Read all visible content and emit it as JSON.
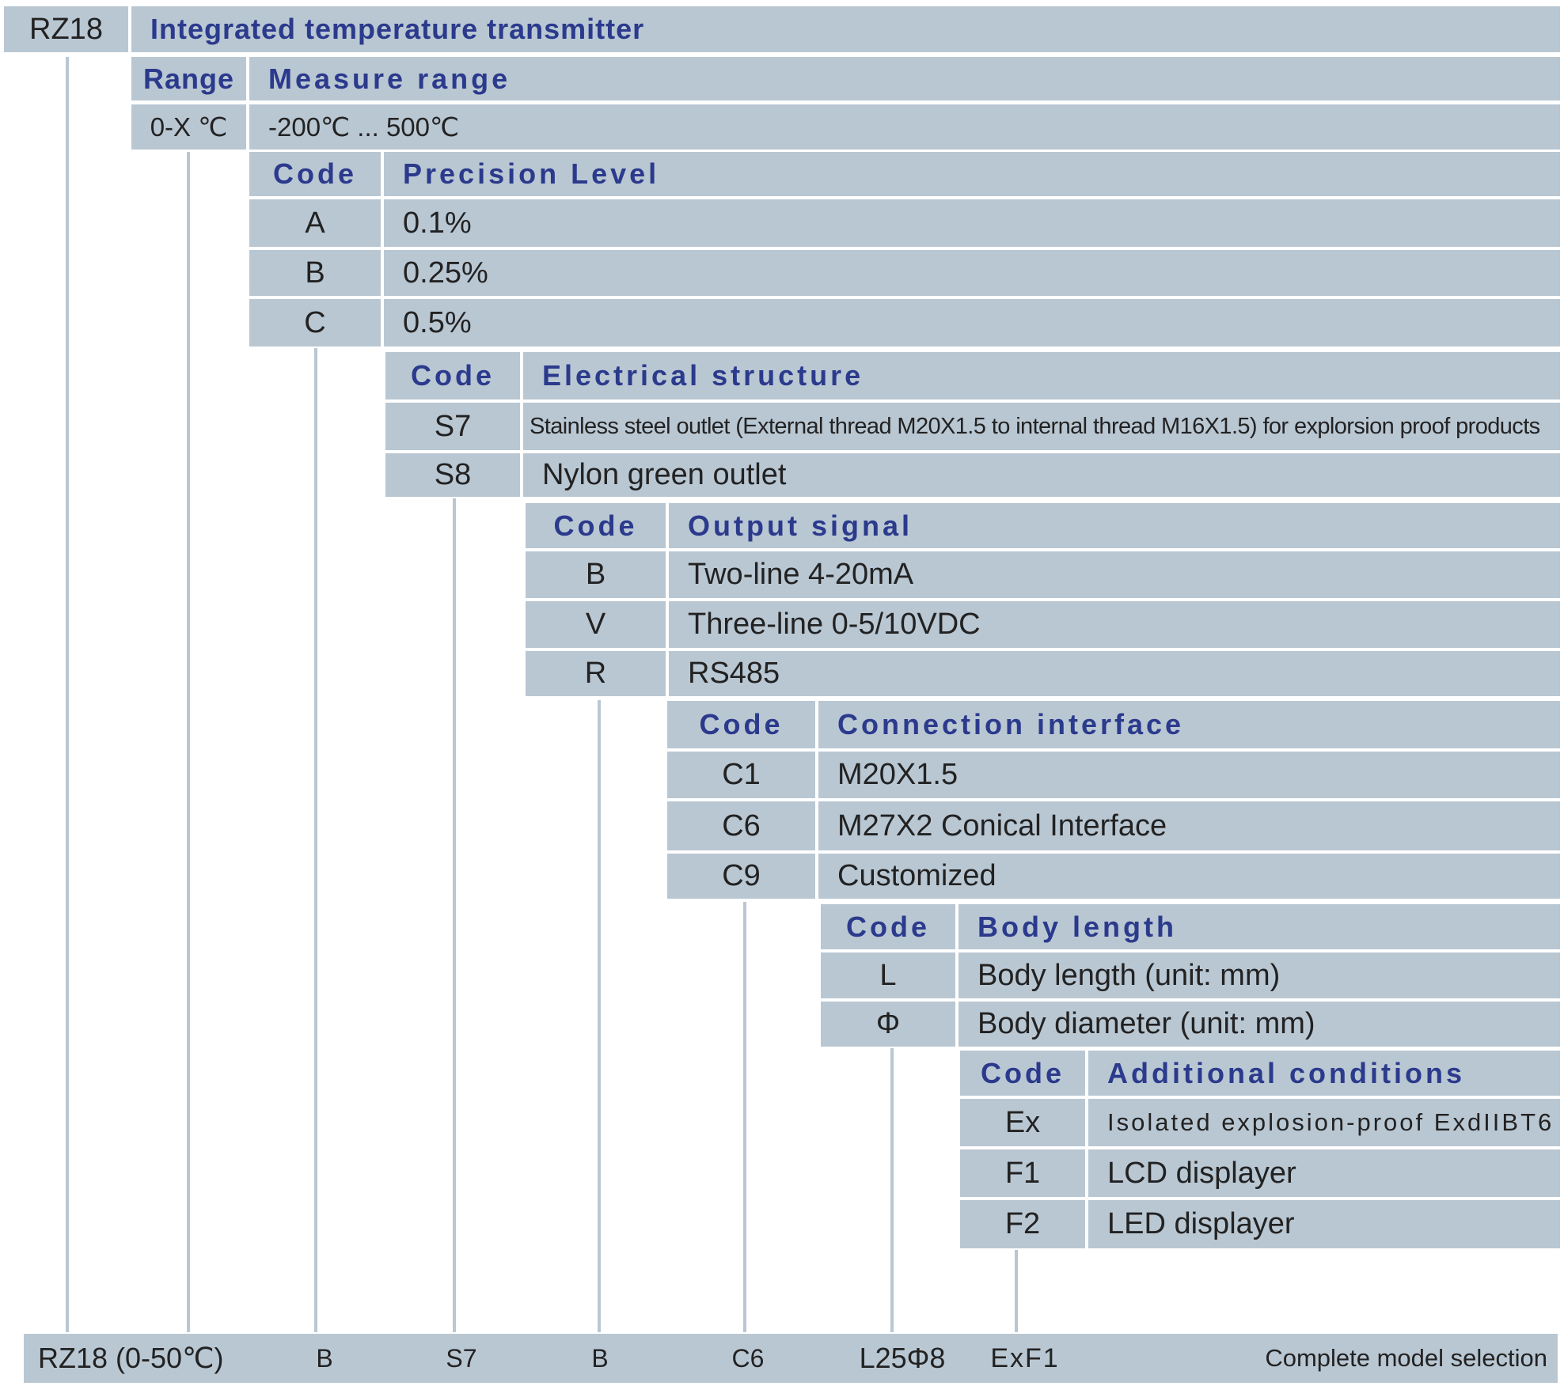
{
  "model": "RZ18",
  "product_title": "Integrated temperature transmitter",
  "range": {
    "header_code": "Range",
    "header_desc": "Measure range",
    "code": "0-X ℃",
    "value": "-200℃ ... 500℃"
  },
  "precision": {
    "header_code": "Code",
    "header_desc": "Precision Level",
    "rows": [
      {
        "code": "A",
        "desc": "0.1%"
      },
      {
        "code": "B",
        "desc": "0.25%"
      },
      {
        "code": "C",
        "desc": "0.5%"
      }
    ]
  },
  "electrical": {
    "header_code": "Code",
    "header_desc": "Electrical structure",
    "rows": [
      {
        "code": "S7",
        "desc": "Stainless steel outlet  (External thread M20X1.5 to internal thread M16X1.5) for explorsion proof products"
      },
      {
        "code": "S8",
        "desc": "Nylon green outlet"
      }
    ]
  },
  "output": {
    "header_code": "Code",
    "header_desc": "Output signal",
    "rows": [
      {
        "code": "B",
        "desc": "Two-line 4-20mA"
      },
      {
        "code": "V",
        "desc": "Three-line  0-5/10VDC"
      },
      {
        "code": "R",
        "desc": "RS485"
      }
    ]
  },
  "connection": {
    "header_code": "Code",
    "header_desc": "Connection interface",
    "rows": [
      {
        "code": "C1",
        "desc": "M20X1.5"
      },
      {
        "code": "C6",
        "desc": "M27X2 Conical Interface"
      },
      {
        "code": "C9",
        "desc": "Customized"
      }
    ]
  },
  "body": {
    "header_code": "Code",
    "header_desc": "Body length",
    "rows": [
      {
        "code": "L",
        "desc": "Body length  (unit:  mm)"
      },
      {
        "code": "Φ",
        "desc": "Body diameter  (unit:  mm)"
      }
    ]
  },
  "additional": {
    "header_code": "Code",
    "header_desc": "Additional conditions",
    "rows": [
      {
        "code": "Ex",
        "desc": "Isolated explosion-proof  ExdIIBT6"
      },
      {
        "code": "F1",
        "desc": "LCD displayer"
      },
      {
        "code": "F2",
        "desc": "LED displayer"
      }
    ]
  },
  "example": {
    "parts": [
      "RZ18 (0-50℃)",
      "B",
      "S7",
      "B",
      "C6",
      "L25Φ8",
      "ExF1"
    ],
    "label": "Complete model selection"
  }
}
